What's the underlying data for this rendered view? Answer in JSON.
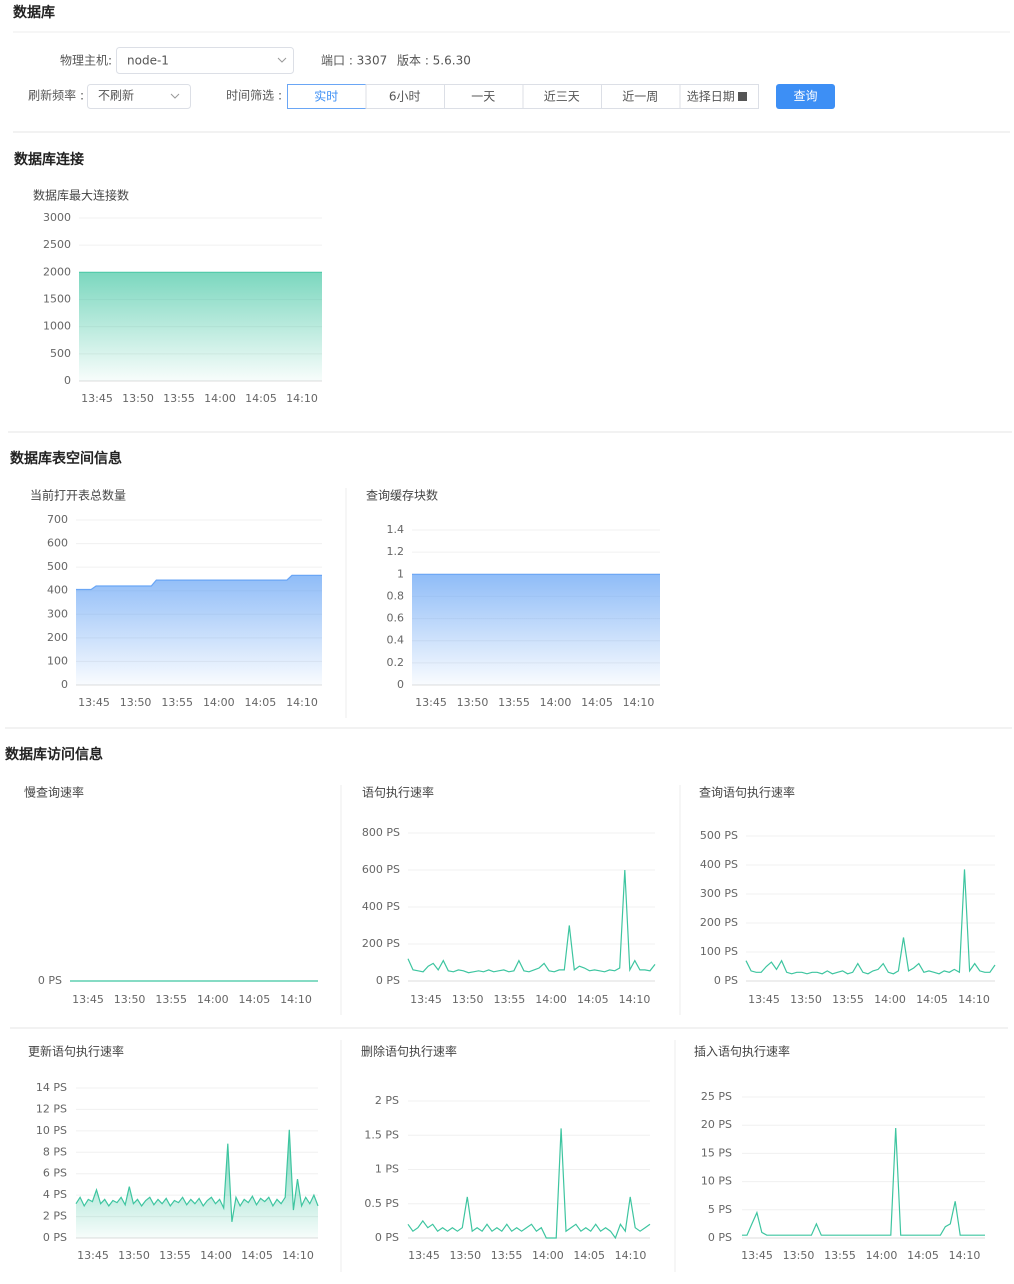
{
  "header": {
    "title": "数据库"
  },
  "filters": {
    "host_label": "物理主机:",
    "host_value": "node-1",
    "port": "端口 : 3307",
    "version": "版本 : 5.6.30",
    "refresh_label": "刷新频率 :",
    "refresh_value": "不刷新",
    "time_label": "时间筛选 :",
    "time_options": [
      "实时",
      "6小时",
      "一天",
      "近三天",
      "近一周",
      "选择日期"
    ],
    "query_button": "查询"
  },
  "sections": [
    "数据库连接",
    "数据库表空间信息",
    "数据库访问信息"
  ],
  "chart_data": [
    {
      "type": "line",
      "title": "数据库最大连接数",
      "area": true,
      "color": "#4fcaa9",
      "ylim": [
        0,
        3000
      ],
      "yticks": [
        0,
        500,
        1000,
        1500,
        2000,
        2500,
        3000
      ],
      "xtick_labels": [
        "13:45",
        "13:50",
        "13:55",
        "14:00",
        "14:05",
        "14:10"
      ],
      "values": [
        2000,
        2000,
        2000,
        2000,
        2000,
        2000,
        2000,
        2000,
        2000,
        2000
      ]
    },
    {
      "type": "line",
      "title": "当前打开表总数量",
      "area": true,
      "color": "#6aa6f5",
      "ylim": [
        0,
        700
      ],
      "yticks": [
        0,
        100,
        200,
        300,
        400,
        500,
        600,
        700
      ],
      "xtick_labels": [
        "13:45",
        "13:50",
        "13:55",
        "14:00",
        "14:05",
        "14:10"
      ],
      "values": [
        405,
        405,
        405,
        405,
        420,
        420,
        420,
        420,
        420,
        420,
        420,
        420,
        420,
        420,
        420,
        420,
        445,
        445,
        445,
        445,
        445,
        445,
        445,
        445,
        445,
        445,
        445,
        445,
        445,
        445,
        445,
        445,
        445,
        445,
        445,
        445,
        445,
        445,
        445,
        445,
        445,
        445,
        445,
        465,
        465,
        465,
        465,
        465,
        465,
        465
      ]
    },
    {
      "type": "line",
      "title": "查询缓存块数",
      "area": true,
      "color": "#6aa6f5",
      "ylim": [
        0,
        1.4
      ],
      "yticks": [
        0,
        0.2,
        0.4,
        0.6,
        0.8,
        1,
        1.2,
        1.4
      ],
      "xtick_labels": [
        "13:45",
        "13:50",
        "13:55",
        "14:00",
        "14:05",
        "14:10"
      ],
      "values": [
        1,
        1,
        1,
        1,
        1,
        1,
        1,
        1,
        1,
        1
      ]
    },
    {
      "type": "line",
      "title": "慢查询速率",
      "area": false,
      "color": "#3ec5a0",
      "ylim": [
        0,
        1
      ],
      "yticks": [
        {
          "value": 0,
          "label": "0 PS"
        }
      ],
      "xtick_labels": [
        "13:45",
        "13:50",
        "13:55",
        "14:00",
        "14:05",
        "14:10"
      ],
      "values": [
        0,
        0,
        0,
        0,
        0,
        0,
        0,
        0,
        0,
        0
      ]
    },
    {
      "type": "line",
      "title": "语句执行速率",
      "area": false,
      "color": "#3ec5a0",
      "ylim": [
        0,
        800
      ],
      "yticks": [
        {
          "value": 0,
          "label": "0 PS"
        },
        {
          "value": 200,
          "label": "200 PS"
        },
        {
          "value": 400,
          "label": "400 PS"
        },
        {
          "value": 600,
          "label": "600 PS"
        },
        {
          "value": 800,
          "label": "800 PS"
        }
      ],
      "xtick_labels": [
        "13:45",
        "13:50",
        "13:55",
        "14:00",
        "14:05",
        "14:10"
      ],
      "values": [
        120,
        60,
        55,
        50,
        80,
        95,
        60,
        110,
        55,
        50,
        60,
        55,
        45,
        50,
        55,
        50,
        60,
        50,
        55,
        60,
        50,
        55,
        110,
        55,
        50,
        60,
        70,
        95,
        55,
        50,
        60,
        60,
        300,
        60,
        80,
        70,
        55,
        60,
        55,
        50,
        60,
        55,
        70,
        600,
        60,
        110,
        60,
        60,
        55,
        90
      ]
    },
    {
      "type": "line",
      "title": "查询语句执行速率",
      "area": false,
      "color": "#3ec5a0",
      "ylim": [
        0,
        500
      ],
      "yticks": [
        {
          "value": 0,
          "label": "0 PS"
        },
        {
          "value": 100,
          "label": "100 PS"
        },
        {
          "value": 200,
          "label": "200 PS"
        },
        {
          "value": 300,
          "label": "300 PS"
        },
        {
          "value": 400,
          "label": "400 PS"
        },
        {
          "value": 500,
          "label": "500 PS"
        }
      ],
      "xtick_labels": [
        "13:45",
        "13:50",
        "13:55",
        "14:00",
        "14:05",
        "14:10"
      ],
      "values": [
        70,
        35,
        30,
        30,
        50,
        65,
        40,
        70,
        30,
        25,
        30,
        30,
        25,
        30,
        30,
        25,
        35,
        25,
        30,
        35,
        25,
        30,
        60,
        30,
        25,
        35,
        40,
        60,
        30,
        25,
        35,
        150,
        35,
        45,
        60,
        30,
        35,
        30,
        25,
        35,
        30,
        40,
        30,
        385,
        35,
        60,
        35,
        30,
        30,
        55
      ]
    },
    {
      "type": "line",
      "title": "更新语句执行速率",
      "area": true,
      "color": "#3ec5a0",
      "ylim": [
        0,
        14
      ],
      "yticks": [
        {
          "value": 0,
          "label": "0 PS"
        },
        {
          "value": 2,
          "label": "2 PS"
        },
        {
          "value": 4,
          "label": "4 PS"
        },
        {
          "value": 6,
          "label": "6 PS"
        },
        {
          "value": 8,
          "label": "8 PS"
        },
        {
          "value": 10,
          "label": "10 PS"
        },
        {
          "value": 12,
          "label": "12 PS"
        },
        {
          "value": 14,
          "label": "14 PS"
        }
      ],
      "xtick_labels": [
        "13:45",
        "13:50",
        "13:55",
        "14:00",
        "14:05",
        "14:10"
      ],
      "values": [
        3.2,
        3.8,
        3.0,
        3.6,
        3.4,
        4.5,
        3.2,
        3.6,
        3.0,
        3.5,
        3.3,
        3.8,
        3.1,
        4.8,
        3.2,
        3.6,
        3.0,
        3.5,
        3.8,
        3.1,
        3.6,
        3.2,
        3.7,
        3.0,
        3.5,
        3.3,
        3.8,
        3.1,
        3.6,
        3.2,
        3.7,
        3.0,
        3.5,
        3.8,
        3.2,
        3.6,
        2.8,
        8.8,
        1.5,
        3.8,
        3.0,
        3.6,
        3.3,
        3.9,
        3.1,
        3.7,
        3.4,
        3.8,
        3.0,
        3.6,
        3.2,
        3.8,
        10.1,
        2.6,
        5.5,
        3.0,
        3.8,
        3.2,
        4.0,
        3.0
      ]
    },
    {
      "type": "line",
      "title": "删除语句执行速率",
      "area": false,
      "color": "#3ec5a0",
      "ylim": [
        0,
        2
      ],
      "yticks": [
        {
          "value": 0,
          "label": "0 PS"
        },
        {
          "value": 0.5,
          "label": "0.5 PS"
        },
        {
          "value": 1,
          "label": "1 PS"
        },
        {
          "value": 1.5,
          "label": "1.5 PS"
        },
        {
          "value": 2,
          "label": "2 PS"
        }
      ],
      "xtick_labels": [
        "13:45",
        "13:50",
        "13:55",
        "14:00",
        "14:05",
        "14:10"
      ],
      "values": [
        0.2,
        0.1,
        0.15,
        0.25,
        0.15,
        0.2,
        0.1,
        0.15,
        0.1,
        0.15,
        0.1,
        0.15,
        0.6,
        0.1,
        0.15,
        0.1,
        0.2,
        0.1,
        0.15,
        0.1,
        0.2,
        0.1,
        0.15,
        0.1,
        0.15,
        0.2,
        0.1,
        0.15,
        0,
        0,
        0,
        1.6,
        0.1,
        0.15,
        0.2,
        0.1,
        0.15,
        0.1,
        0.2,
        0.1,
        0.15,
        0.1,
        0,
        0.2,
        0.1,
        0.6,
        0.15,
        0.1,
        0.15,
        0.2
      ]
    },
    {
      "type": "line",
      "title": "插入语句执行速率",
      "area": false,
      "color": "#3ec5a0",
      "ylim": [
        0,
        25
      ],
      "yticks": [
        {
          "value": 0,
          "label": "0 PS"
        },
        {
          "value": 5,
          "label": "5 PS"
        },
        {
          "value": 10,
          "label": "10 PS"
        },
        {
          "value": 15,
          "label": "15 PS"
        },
        {
          "value": 20,
          "label": "20 PS"
        },
        {
          "value": 25,
          "label": "25 PS"
        }
      ],
      "xtick_labels": [
        "13:45",
        "13:50",
        "13:55",
        "14:00",
        "14:05",
        "14:10"
      ],
      "values": [
        0.5,
        0.5,
        2.5,
        4.5,
        1,
        0.5,
        0.5,
        0.5,
        0.5,
        0.5,
        0.5,
        0.5,
        0.5,
        0.5,
        0.5,
        2.5,
        0.5,
        0.5,
        0.5,
        0.5,
        0.5,
        0.5,
        0.5,
        0.5,
        0.5,
        0.5,
        0.5,
        0.5,
        0.5,
        0.5,
        0.5,
        19.5,
        0.5,
        0.5,
        0.5,
        0.5,
        0.5,
        0.5,
        0.5,
        0.5,
        0.5,
        2,
        2.5,
        6.5,
        0.5,
        0.5,
        0.5,
        0.5,
        0.5,
        0.5
      ]
    }
  ]
}
